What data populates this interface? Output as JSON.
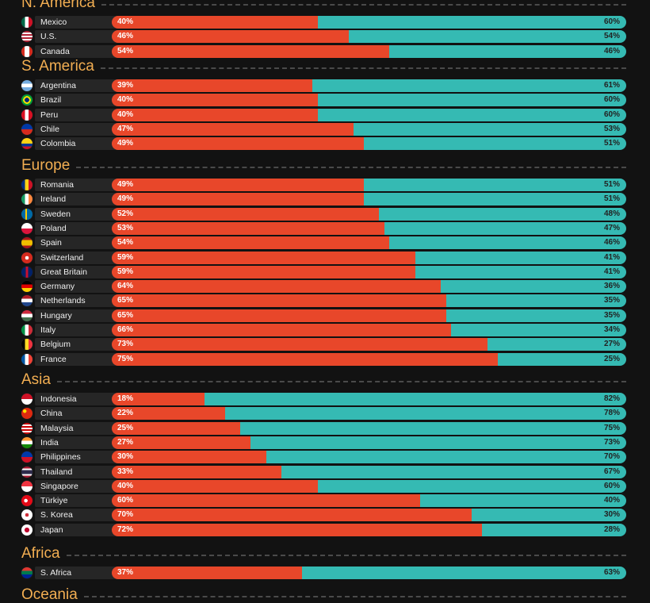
{
  "colors": {
    "bar_a": "#e8472a",
    "bar_b": "#35bab3",
    "region": "#f2ae52"
  },
  "chart_data": {
    "type": "bar",
    "orientation": "horizontal-stacked",
    "groups": [
      {
        "region": "N. America",
        "items": [
          {
            "country": "Mexico",
            "flag": "mexico-flag-icon",
            "a": 40,
            "b": 60
          },
          {
            "country": "U.S.",
            "flag": "us-flag-icon",
            "a": 46,
            "b": 54
          },
          {
            "country": "Canada",
            "flag": "canada-flag-icon",
            "a": 54,
            "b": 46
          }
        ]
      },
      {
        "region": "S. America",
        "items": [
          {
            "country": "Argentina",
            "flag": "argentina-flag-icon",
            "a": 39,
            "b": 61
          },
          {
            "country": "Brazil",
            "flag": "brazil-flag-icon",
            "a": 40,
            "b": 60
          },
          {
            "country": "Peru",
            "flag": "peru-flag-icon",
            "a": 40,
            "b": 60
          },
          {
            "country": "Chile",
            "flag": "chile-flag-icon",
            "a": 47,
            "b": 53
          },
          {
            "country": "Colombia",
            "flag": "colombia-flag-icon",
            "a": 49,
            "b": 51
          }
        ]
      },
      {
        "region": "Europe",
        "items": [
          {
            "country": "Romania",
            "flag": "romania-flag-icon",
            "a": 49,
            "b": 51
          },
          {
            "country": "Ireland",
            "flag": "ireland-flag-icon",
            "a": 49,
            "b": 51
          },
          {
            "country": "Sweden",
            "flag": "sweden-flag-icon",
            "a": 52,
            "b": 48
          },
          {
            "country": "Poland",
            "flag": "poland-flag-icon",
            "a": 53,
            "b": 47
          },
          {
            "country": "Spain",
            "flag": "spain-flag-icon",
            "a": 54,
            "b": 46
          },
          {
            "country": "Switzerland",
            "flag": "switzerland-flag-icon",
            "a": 59,
            "b": 41
          },
          {
            "country": "Great Britain",
            "flag": "great-britain-flag-icon",
            "a": 59,
            "b": 41
          },
          {
            "country": "Germany",
            "flag": "germany-flag-icon",
            "a": 64,
            "b": 36
          },
          {
            "country": "Netherlands",
            "flag": "netherlands-flag-icon",
            "a": 65,
            "b": 35
          },
          {
            "country": "Hungary",
            "flag": "hungary-flag-icon",
            "a": 65,
            "b": 35
          },
          {
            "country": "Italy",
            "flag": "italy-flag-icon",
            "a": 66,
            "b": 34
          },
          {
            "country": "Belgium",
            "flag": "belgium-flag-icon",
            "a": 73,
            "b": 27
          },
          {
            "country": "France",
            "flag": "france-flag-icon",
            "a": 75,
            "b": 25
          }
        ]
      },
      {
        "region": "Asia",
        "items": [
          {
            "country": "Indonesia",
            "flag": "indonesia-flag-icon",
            "a": 18,
            "b": 82
          },
          {
            "country": "China",
            "flag": "china-flag-icon",
            "a": 22,
            "b": 78
          },
          {
            "country": "Malaysia",
            "flag": "malaysia-flag-icon",
            "a": 25,
            "b": 75
          },
          {
            "country": "India",
            "flag": "india-flag-icon",
            "a": 27,
            "b": 73
          },
          {
            "country": "Philippines",
            "flag": "philippines-flag-icon",
            "a": 30,
            "b": 70
          },
          {
            "country": "Thailand",
            "flag": "thailand-flag-icon",
            "a": 33,
            "b": 67
          },
          {
            "country": "Singapore",
            "flag": "singapore-flag-icon",
            "a": 40,
            "b": 60
          },
          {
            "country": "Türkiye",
            "flag": "turkiye-flag-icon",
            "a": 60,
            "b": 40
          },
          {
            "country": "S. Korea",
            "flag": "south-korea-flag-icon",
            "a": 70,
            "b": 30
          },
          {
            "country": "Japan",
            "flag": "japan-flag-icon",
            "a": 72,
            "b": 28
          }
        ]
      },
      {
        "region": "Africa",
        "items": [
          {
            "country": "S. Africa",
            "flag": "south-africa-flag-icon",
            "a": 37,
            "b": 63
          }
        ]
      },
      {
        "region": "Oceania",
        "items": []
      }
    ]
  }
}
